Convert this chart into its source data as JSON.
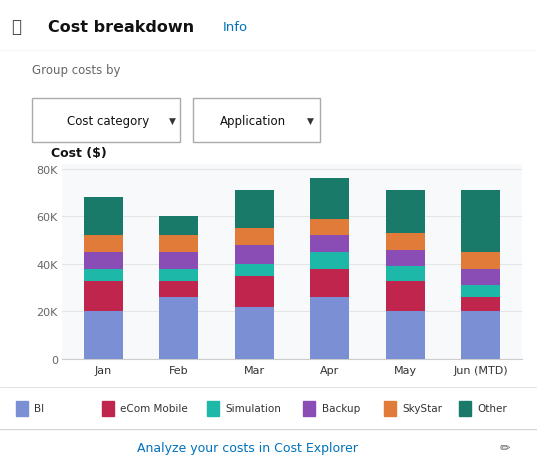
{
  "months": [
    "Jan",
    "Feb",
    "Mar",
    "Apr",
    "May",
    "Jun (MTD)"
  ],
  "series": {
    "BI": [
      20000,
      26000,
      22000,
      26000,
      20000,
      20000
    ],
    "eCom Mobile": [
      13000,
      7000,
      13000,
      12000,
      13000,
      6000
    ],
    "Simulation": [
      5000,
      5000,
      5000,
      7000,
      6000,
      5000
    ],
    "Backup": [
      7000,
      7000,
      8000,
      7000,
      7000,
      7000
    ],
    "SkyStar": [
      7000,
      7000,
      7000,
      7000,
      7000,
      7000
    ],
    "Other": [
      16000,
      8000,
      16000,
      17000,
      18000,
      26000
    ]
  },
  "colors": {
    "BI": "#7B8FD4",
    "eCom Mobile": "#C0254E",
    "Simulation": "#1EB8A8",
    "Backup": "#8A4DB5",
    "SkyStar": "#E07B39",
    "Other": "#1A7A6A"
  },
  "ylabel": "Cost ($)",
  "yticks": [
    0,
    20000,
    40000,
    60000,
    80000
  ],
  "ytick_labels": [
    "0",
    "20K",
    "40K",
    "60K",
    "80K"
  ],
  "ylim": [
    0,
    82000
  ],
  "bg_color": "#ffffff",
  "header_bg": "#f5f5f5",
  "title": "Cost breakdown",
  "info_text": "Info",
  "group_label": "Group costs by",
  "dropdown1": "Cost category",
  "dropdown2": "Application",
  "footer_text": "Analyze your costs in Cost Explorer",
  "grid_color": "#e5e5e5",
  "header_line_color": "#d5d5d5",
  "footer_line_color": "#d5d5d5",
  "chart_bg": "#f8f9fa"
}
